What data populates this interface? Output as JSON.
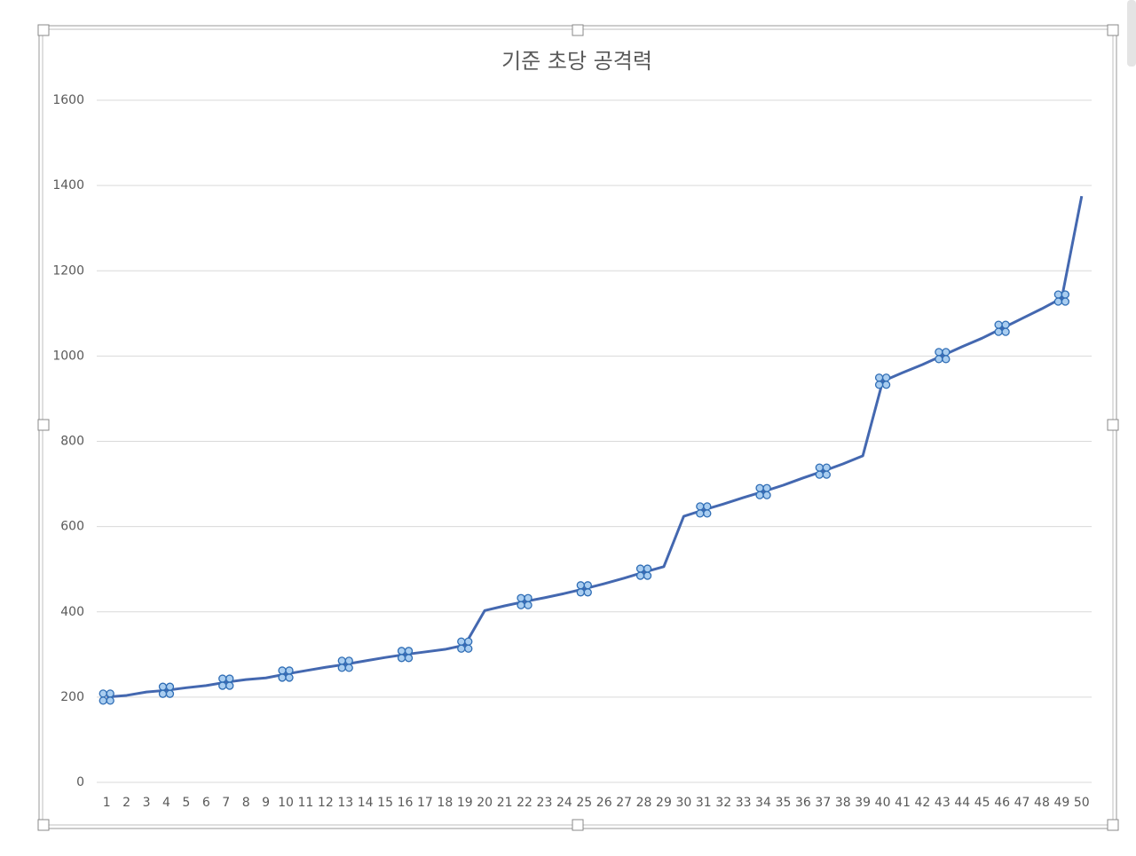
{
  "chart_data": {
    "type": "line",
    "title": "기준 초당 공격력",
    "categories": [
      "1",
      "2",
      "3",
      "4",
      "5",
      "6",
      "7",
      "8",
      "9",
      "10",
      "11",
      "12",
      "13",
      "14",
      "15",
      "16",
      "17",
      "18",
      "19",
      "20",
      "21",
      "22",
      "23",
      "24",
      "25",
      "26",
      "27",
      "28",
      "29",
      "30",
      "31",
      "32",
      "33",
      "34",
      "35",
      "36",
      "37",
      "38",
      "39",
      "40",
      "41",
      "42",
      "43",
      "44",
      "45",
      "46",
      "47",
      "48",
      "49",
      "50"
    ],
    "values": [
      200,
      204,
      212,
      216,
      222,
      227,
      235,
      241,
      245,
      254,
      262,
      270,
      277,
      285,
      293,
      300,
      306,
      312,
      322,
      403,
      414,
      424,
      433,
      443,
      454,
      466,
      479,
      493,
      506,
      624,
      639,
      653,
      668,
      682,
      697,
      714,
      730,
      747,
      766,
      941,
      961,
      980,
      1001,
      1022,
      1042,
      1065,
      1088,
      1111,
      1136,
      1375
    ],
    "color": "#4468b0",
    "marker_every": 3,
    "ylim": [
      0,
      1600
    ],
    "yticks": [
      0,
      200,
      400,
      600,
      800,
      1000,
      1200,
      1400,
      1600
    ],
    "grid": true
  }
}
